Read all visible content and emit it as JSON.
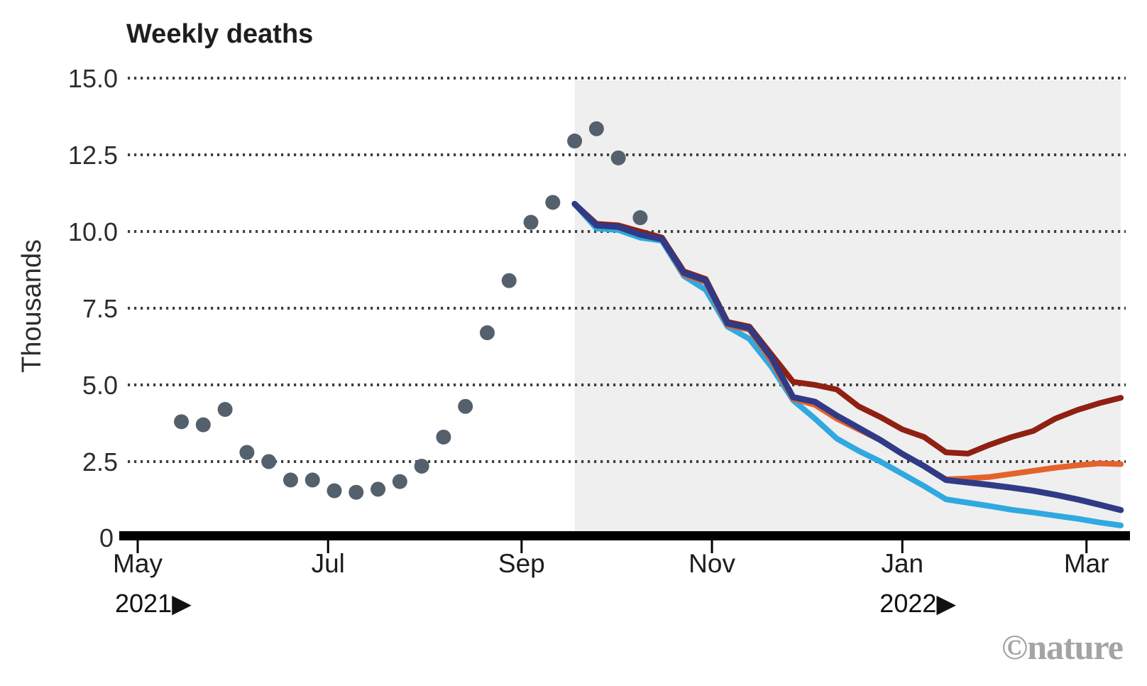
{
  "title": "Weekly deaths",
  "y_axis": {
    "label": "Thousands",
    "zero_label": "0"
  },
  "x_axis": {
    "year_arrow": "▶",
    "ticks": [
      {
        "label": "May",
        "date": "2021-05-01",
        "year_label": "2021"
      },
      {
        "label": "Jul",
        "date": "2021-07-01",
        "year_label": ""
      },
      {
        "label": "Sep",
        "date": "2021-09-01",
        "year_label": ""
      },
      {
        "label": "Nov",
        "date": "2021-11-01",
        "year_label": ""
      },
      {
        "label": "Jan",
        "date": "2022-01-01",
        "year_label": "2022"
      },
      {
        "label": "Mar",
        "date": "2022-03-01",
        "year_label": ""
      }
    ]
  },
  "watermark": {
    "text": "©nature"
  },
  "colors": {
    "observed_dot": "#55606d",
    "forecast_region": "#efefef",
    "grid": "#3f3f3f",
    "axis": "#000000",
    "dark_red": "#8f2012",
    "orange": "#e4622b",
    "navy": "#303a86",
    "light_blue": "#2fa9e0",
    "watermark": "#a4a4a4"
  },
  "chart_data": {
    "type": "line",
    "subtype": "scatter-observed-plus-projection-lines",
    "title": "Weekly deaths",
    "xlabel": "",
    "ylabel": "Thousands",
    "ylim": [
      0,
      15
    ],
    "grid": "horizontal-dotted",
    "legend_position": "none",
    "y_gridlines": [
      {
        "label": "15.0",
        "value": 15.0
      },
      {
        "label": "12.5",
        "value": 12.5
      },
      {
        "label": "10.0",
        "value": 10.0
      },
      {
        "label": "7.5",
        "value": 7.5
      },
      {
        "label": "5.0",
        "value": 5.0
      },
      {
        "label": "2.5",
        "value": 2.5
      }
    ],
    "shaded_region": {
      "from": "2021-09-18",
      "to": "2022-03-12"
    },
    "observed": {
      "name": "reported weekly deaths (dots)",
      "dates": [
        "2021-05-15",
        "2021-05-22",
        "2021-05-29",
        "2021-06-05",
        "2021-06-12",
        "2021-06-19",
        "2021-06-26",
        "2021-07-03",
        "2021-07-10",
        "2021-07-17",
        "2021-07-24",
        "2021-07-31",
        "2021-08-07",
        "2021-08-14",
        "2021-08-21",
        "2021-08-28",
        "2021-09-04",
        "2021-09-11",
        "2021-09-18",
        "2021-09-25",
        "2021-10-02",
        "2021-10-09"
      ],
      "values": [
        3.8,
        3.7,
        4.2,
        2.8,
        2.5,
        1.9,
        1.9,
        1.55,
        1.5,
        1.6,
        1.85,
        2.35,
        3.3,
        4.3,
        6.7,
        8.4,
        10.3,
        10.95,
        12.95,
        13.35,
        12.4,
        10.45
      ]
    },
    "series_dates": [
      "2021-09-18",
      "2021-09-25",
      "2021-10-02",
      "2021-10-09",
      "2021-10-16",
      "2021-10-23",
      "2021-10-30",
      "2021-11-06",
      "2021-11-13",
      "2021-11-20",
      "2021-11-27",
      "2021-12-04",
      "2021-12-11",
      "2021-12-18",
      "2021-12-25",
      "2022-01-01",
      "2022-01-08",
      "2022-01-15",
      "2022-01-22",
      "2022-01-29",
      "2022-02-05",
      "2022-02-12",
      "2022-02-19",
      "2022-02-26",
      "2022-03-05",
      "2022-03-12"
    ],
    "series": [
      {
        "key": "light-blue",
        "name": "light-blue projection",
        "color": "#2fa9e0",
        "width": 8,
        "values": [
          10.9,
          10.1,
          10.05,
          9.8,
          9.7,
          8.55,
          8.1,
          6.9,
          6.5,
          5.6,
          4.5,
          3.9,
          3.25,
          2.85,
          2.5,
          2.1,
          1.7,
          1.27,
          1.16,
          1.05,
          0.93,
          0.84,
          0.74,
          0.64,
          0.52,
          0.42
        ]
      },
      {
        "key": "orange",
        "name": "orange projection",
        "color": "#e4622b",
        "width": 8,
        "values": [
          10.9,
          10.2,
          10.15,
          9.9,
          9.75,
          8.6,
          8.35,
          6.95,
          6.8,
          5.8,
          4.55,
          4.35,
          3.9,
          3.55,
          3.2,
          2.75,
          2.35,
          1.92,
          1.95,
          2.0,
          2.1,
          2.2,
          2.3,
          2.38,
          2.44,
          2.42
        ]
      },
      {
        "key": "dark-red",
        "name": "dark-red projection",
        "color": "#8f2012",
        "width": 8,
        "values": [
          10.9,
          10.25,
          10.2,
          10.0,
          9.8,
          8.7,
          8.45,
          7.05,
          6.9,
          6.0,
          5.1,
          5.0,
          4.85,
          4.3,
          3.95,
          3.55,
          3.3,
          2.8,
          2.76,
          3.05,
          3.3,
          3.5,
          3.9,
          4.18,
          4.4,
          4.58
        ]
      },
      {
        "key": "navy",
        "name": "navy projection",
        "color": "#303a86",
        "width": 8.5,
        "values": [
          10.9,
          10.2,
          10.15,
          9.9,
          9.75,
          8.65,
          8.4,
          7.0,
          6.85,
          5.9,
          4.6,
          4.45,
          4.0,
          3.6,
          3.2,
          2.75,
          2.35,
          1.9,
          1.82,
          1.74,
          1.65,
          1.55,
          1.42,
          1.27,
          1.1,
          0.92
        ]
      }
    ]
  }
}
